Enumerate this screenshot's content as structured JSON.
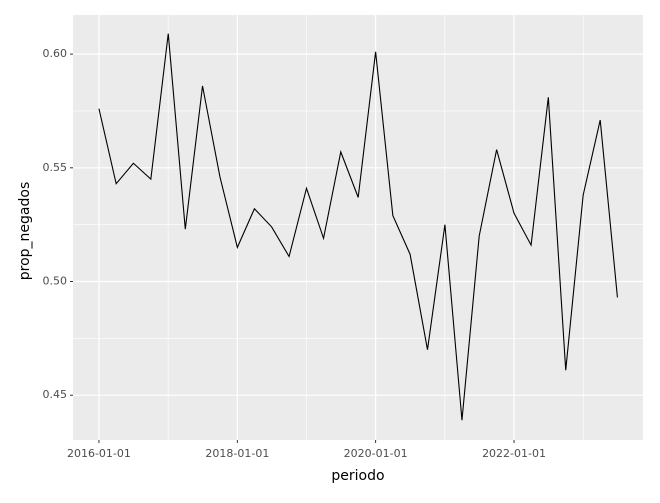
{
  "chart_data": {
    "type": "line",
    "x_label": "periodo",
    "y_label": "prop_negados",
    "x": [
      "2016-01-01",
      "2016-04-01",
      "2016-07-01",
      "2016-10-01",
      "2017-01-01",
      "2017-04-01",
      "2017-07-01",
      "2017-10-01",
      "2018-01-01",
      "2018-04-01",
      "2018-07-01",
      "2018-10-01",
      "2019-01-01",
      "2019-04-01",
      "2019-07-01",
      "2019-10-01",
      "2020-01-01",
      "2020-04-01",
      "2020-07-01",
      "2020-10-01",
      "2021-01-01",
      "2021-04-01",
      "2021-07-01",
      "2021-10-01",
      "2022-01-01",
      "2022-04-01",
      "2022-07-01",
      "2022-10-01",
      "2023-01-01",
      "2023-04-01",
      "2023-07-01"
    ],
    "series": [
      {
        "color": "#000000",
        "values": [
          0.576,
          0.543,
          0.552,
          0.545,
          0.609,
          0.523,
          0.586,
          0.546,
          0.515,
          0.532,
          0.524,
          0.511,
          0.541,
          0.519,
          0.557,
          0.537,
          0.601,
          0.529,
          0.512,
          0.47,
          0.525,
          0.439,
          0.52,
          0.558,
          0.53,
          0.516,
          0.581,
          0.461,
          0.538,
          0.571,
          0.493
        ]
      }
    ],
    "xlim": [
      "2015-08-17",
      "2023-11-13"
    ],
    "xticks": [
      "2016-01-01",
      "2018-01-01",
      "2020-01-01",
      "2022-01-01"
    ],
    "ylim": [
      0.4303,
      0.6172
    ],
    "yticks": [
      {
        "value": 0.45,
        "label": "0.45"
      },
      {
        "value": 0.5,
        "label": "0.50"
      },
      {
        "value": 0.55,
        "label": "0.55"
      },
      {
        "value": 0.6,
        "label": "0.60"
      }
    ],
    "grid": true
  }
}
